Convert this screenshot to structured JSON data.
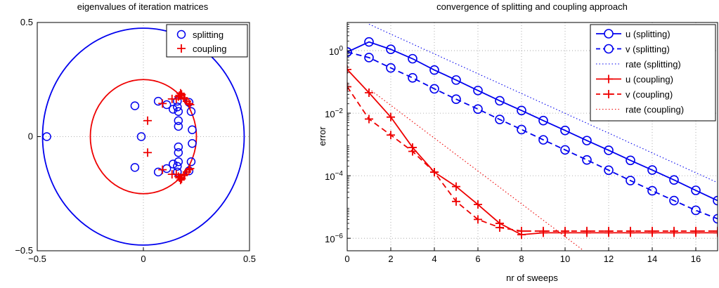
{
  "chart_data": [
    {
      "type": "scatter",
      "title": "eigenvalues of iteration matrices",
      "xlabel": "",
      "ylabel": "",
      "xlim": [
        -0.5,
        0.5
      ],
      "ylim": [
        -0.5,
        0.5
      ],
      "xticks": [
        -0.5,
        0,
        0.5
      ],
      "yticks": [
        -0.5,
        0,
        0.5
      ],
      "xtick_labels": [
        "−0.5",
        "0",
        "0.5"
      ],
      "ytick_labels": [
        "−0.5",
        "0",
        "0.5"
      ],
      "grid": true,
      "legend_position": "top-right",
      "circles": [
        {
          "radius": 0.475,
          "color": "#0000ee"
        },
        {
          "radius": 0.25,
          "color": "#ee0000"
        }
      ],
      "series": [
        {
          "name": "splitting",
          "marker": "circle",
          "color": "#0000ee",
          "points": [
            [
              -0.455,
              0.0
            ],
            [
              -0.04,
              0.135
            ],
            [
              -0.04,
              -0.135
            ],
            [
              -0.01,
              0.0
            ],
            [
              0.07,
              0.155
            ],
            [
              0.07,
              -0.155
            ],
            [
              0.11,
              0.14
            ],
            [
              0.11,
              -0.14
            ],
            [
              0.14,
              0.12
            ],
            [
              0.14,
              -0.12
            ],
            [
              0.16,
              0.155
            ],
            [
              0.16,
              -0.155
            ],
            [
              0.16,
              0.13
            ],
            [
              0.16,
              -0.13
            ],
            [
              0.165,
              0.11
            ],
            [
              0.165,
              -0.11
            ],
            [
              0.165,
              0.07
            ],
            [
              0.165,
              -0.07
            ],
            [
              0.165,
              0.045
            ],
            [
              0.165,
              -0.045
            ],
            [
              0.215,
              0.15
            ],
            [
              0.215,
              -0.15
            ],
            [
              0.225,
              0.11
            ],
            [
              0.225,
              -0.11
            ],
            [
              0.23,
              0.03
            ],
            [
              0.23,
              -0.03
            ]
          ]
        },
        {
          "name": "coupling",
          "marker": "plus",
          "color": "#ee0000",
          "points": [
            [
              0.02,
              0.07
            ],
            [
              0.02,
              -0.07
            ],
            [
              0.09,
              0.145
            ],
            [
              0.09,
              -0.145
            ],
            [
              0.135,
              0.165
            ],
            [
              0.135,
              -0.165
            ],
            [
              0.155,
              0.165
            ],
            [
              0.155,
              -0.165
            ],
            [
              0.165,
              0.175
            ],
            [
              0.165,
              -0.175
            ],
            [
              0.17,
              0.18
            ],
            [
              0.17,
              -0.18
            ],
            [
              0.175,
              0.19
            ],
            [
              0.175,
              -0.19
            ],
            [
              0.18,
              0.185
            ],
            [
              0.18,
              -0.185
            ],
            [
              0.19,
              0.17
            ],
            [
              0.19,
              -0.17
            ],
            [
              0.195,
              0.165
            ],
            [
              0.195,
              -0.165
            ],
            [
              0.205,
              0.155
            ],
            [
              0.205,
              -0.155
            ],
            [
              0.215,
              0.145
            ],
            [
              0.215,
              -0.145
            ],
            [
              0.22,
              0.14
            ],
            [
              0.22,
              -0.14
            ]
          ]
        }
      ]
    },
    {
      "type": "line",
      "title": "convergence of splitting and coupling approach",
      "xlabel": "nr of sweeps",
      "ylabel": "error",
      "xlim": [
        0,
        17
      ],
      "ylim_log10": [
        -6.4,
        0.9
      ],
      "yscale": "log",
      "xticks": [
        0,
        2,
        4,
        6,
        8,
        10,
        12,
        14,
        16
      ],
      "xtick_labels": [
        "0",
        "2",
        "4",
        "6",
        "8",
        "10",
        "12",
        "14",
        "16"
      ],
      "ytick_exponents": [
        -6,
        -4,
        -2,
        0
      ],
      "ytick_base": "10",
      "ytick_exponent_labels": [
        "−6",
        "−4",
        "−2",
        "0"
      ],
      "grid": true,
      "legend_position": "top-right",
      "series": [
        {
          "name": "u (splitting)",
          "color": "#0000ee",
          "dash": "solid",
          "marker": "circle",
          "x": [
            0,
            1,
            2,
            3,
            4,
            5,
            6,
            7,
            8,
            9,
            10,
            11,
            12,
            13,
            14,
            15,
            16,
            17
          ],
          "y": [
            0.9,
            1.9,
            1.1,
            0.55,
            0.24,
            0.115,
            0.053,
            0.025,
            0.0122,
            0.0058,
            0.0028,
            0.00133,
            0.00065,
            0.00031,
            0.000152,
            7.3e-05,
            3.4e-05,
            1.6e-05
          ]
        },
        {
          "name": "v (splitting)",
          "color": "#0000ee",
          "dash": "dashed",
          "marker": "circle",
          "x": [
            0,
            1,
            2,
            3,
            4,
            5,
            6,
            7,
            8,
            9,
            10,
            11,
            12,
            13,
            14,
            15,
            16,
            17
          ],
          "y": [
            0.9,
            0.6,
            0.28,
            0.135,
            0.06,
            0.028,
            0.0135,
            0.0063,
            0.003,
            0.0014,
            0.00067,
            0.00032,
            0.00015,
            7e-05,
            3.3e-05,
            1.6e-05,
            7.8e-06,
            4.2e-06
          ]
        },
        {
          "name": "rate (splitting)",
          "color": "#0000ee",
          "dash": "dotted",
          "marker": "none",
          "x": [
            1,
            17
          ],
          "y": [
            7,
            6e-05
          ]
        },
        {
          "name": "u (coupling)",
          "color": "#ee0000",
          "dash": "solid",
          "marker": "plus",
          "x": [
            0,
            1,
            2,
            3,
            4,
            5,
            6,
            7,
            8,
            9,
            10,
            11,
            12,
            13,
            14,
            15,
            16,
            17
          ],
          "y": [
            0.25,
            0.045,
            0.0075,
            0.0008,
            0.00013,
            4.5e-05,
            1.2e-05,
            3e-06,
            1.3e-06,
            1.5e-06,
            1.5e-06,
            1.5e-06,
            1.5e-06,
            1.5e-06,
            1.5e-06,
            1.5e-06,
            1.5e-06,
            1.5e-06
          ]
        },
        {
          "name": "v (coupling)",
          "color": "#ee0000",
          "dash": "dashed",
          "marker": "plus",
          "x": [
            0,
            1,
            2,
            3,
            4,
            5,
            6,
            7,
            8,
            9,
            10,
            11,
            12,
            13,
            14,
            15,
            16,
            17
          ],
          "y": [
            0.07,
            0.0065,
            0.002,
            0.0006,
            0.00013,
            1.5e-05,
            4e-06,
            2.2e-06,
            1.7e-06,
            1.7e-06,
            1.7e-06,
            1.7e-06,
            1.7e-06,
            1.7e-06,
            1.7e-06,
            1.7e-06,
            1.7e-06,
            1.7e-06
          ]
        },
        {
          "name": "rate (coupling)",
          "color": "#ee0000",
          "dash": "dotted",
          "marker": "none",
          "x": [
            1,
            12
          ],
          "y": [
            0.06,
            1e-07
          ]
        }
      ]
    }
  ]
}
